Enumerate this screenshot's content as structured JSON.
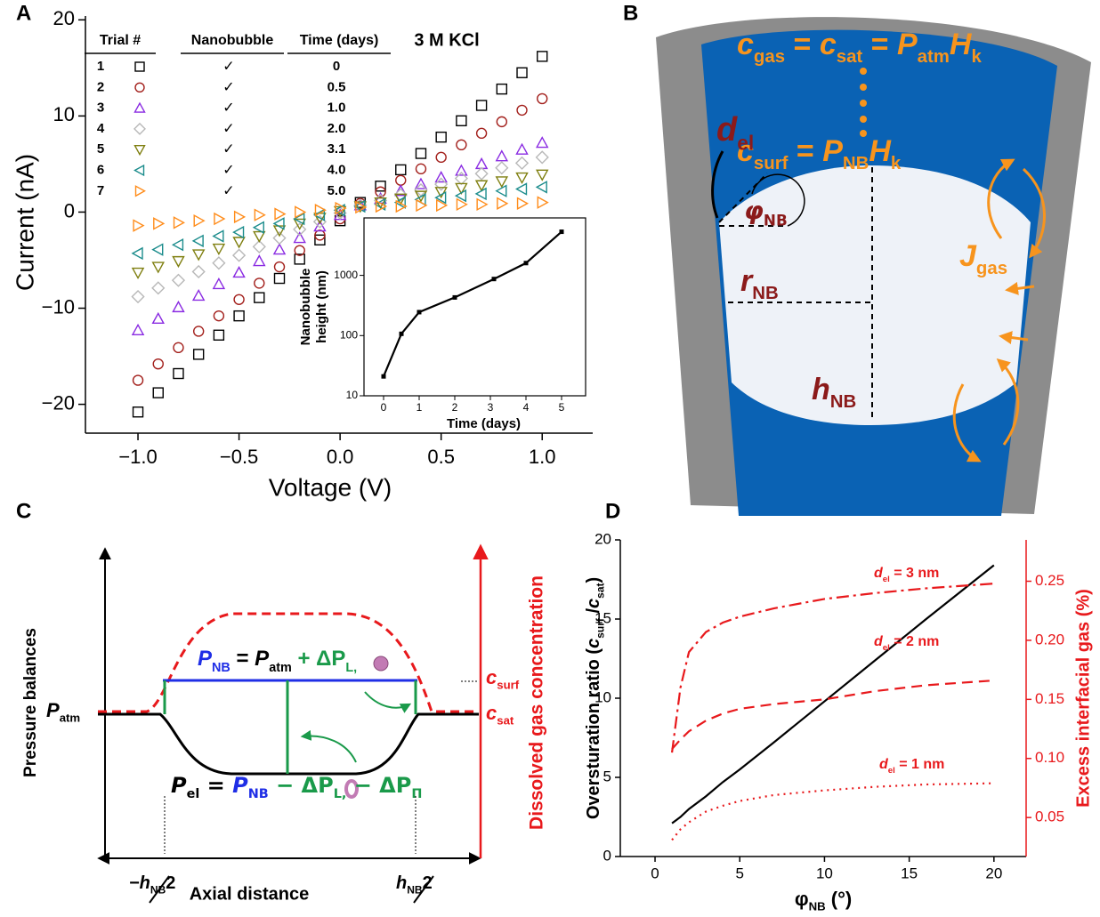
{
  "panel_labels": [
    "A",
    "B",
    "C",
    "D"
  ],
  "legend_table": {
    "headers": [
      "Trial #",
      "Nanobubble",
      "Time (days)"
    ],
    "rows": [
      [
        "✓",
        "0"
      ],
      [
        "✓",
        "0.5"
      ],
      [
        "✓",
        "1.0"
      ],
      [
        "✓",
        "2.0"
      ],
      [
        "✓",
        "3.1"
      ],
      [
        "✓",
        "4.0"
      ],
      [
        "✓",
        "5.0"
      ]
    ]
  },
  "chart_data": [
    {
      "type": "scatter",
      "xlabel": "Voltage (V)",
      "ylabel": "Current (nA)",
      "annotation": "3 M KCl",
      "xlim": [
        -1.26,
        1.25
      ],
      "ylim": [
        -23,
        20.4
      ],
      "xticks": [
        {
          "value": -1.0,
          "label": "−1.0"
        },
        {
          "value": -0.5,
          "label": "−0.5"
        },
        {
          "value": 0.0,
          "label": "0.0"
        },
        {
          "value": 0.5,
          "label": "0.5"
        },
        {
          "value": 1.0,
          "label": "1.0"
        }
      ],
      "yticks": [
        {
          "value": -20,
          "label": "−20"
        },
        {
          "value": -10,
          "label": "−10"
        },
        0,
        10,
        20
      ],
      "x": [
        -1.0,
        -0.9,
        -0.8,
        -0.7,
        -0.6,
        -0.5,
        -0.4,
        -0.3,
        -0.2,
        -0.1,
        0.0,
        0.1,
        0.2,
        0.3,
        0.4,
        0.5,
        0.6,
        0.7,
        0.8,
        0.9,
        1.0
      ],
      "series": [
        {
          "name": "1",
          "color": "#000000",
          "marker": "square",
          "values": [
            -20.8,
            -18.8,
            -16.8,
            -14.8,
            -12.8,
            -10.8,
            -8.9,
            -6.9,
            -4.9,
            -2.9,
            -0.9,
            1.0,
            2.7,
            4.4,
            6.1,
            7.8,
            9.5,
            11.1,
            12.8,
            14.5,
            16.2
          ]
        },
        {
          "name": "2",
          "color": "#a3201c",
          "marker": "circle",
          "values": [
            -17.5,
            -15.8,
            -14.1,
            -12.4,
            -10.8,
            -9.1,
            -7.4,
            -5.7,
            -4.0,
            -2.4,
            -0.7,
            0.9,
            2.1,
            3.3,
            4.5,
            5.7,
            7.0,
            8.2,
            9.4,
            10.6,
            11.8
          ]
        },
        {
          "name": "3",
          "color": "#8a2be2",
          "marker": "triangle-up",
          "values": [
            -12.3,
            -11.1,
            -9.9,
            -8.7,
            -7.5,
            -6.3,
            -5.1,
            -3.9,
            -2.7,
            -1.5,
            -0.3,
            0.7,
            1.4,
            2.2,
            2.9,
            3.6,
            4.3,
            5.0,
            5.8,
            6.5,
            7.2
          ]
        },
        {
          "name": "4",
          "color": "#b8b8b8",
          "marker": "diamond",
          "values": [
            -8.8,
            -7.9,
            -7.1,
            -6.2,
            -5.3,
            -4.5,
            -3.6,
            -2.7,
            -1.8,
            -1.0,
            -0.1,
            0.7,
            1.2,
            1.8,
            2.3,
            2.9,
            3.5,
            4.0,
            4.6,
            5.1,
            5.7
          ]
        },
        {
          "name": "5",
          "color": "#7f7f10",
          "marker": "triangle-down",
          "values": [
            -6.3,
            -5.7,
            -5.1,
            -4.4,
            -3.8,
            -3.1,
            -2.5,
            -1.9,
            -1.2,
            -0.6,
            0.1,
            0.6,
            1.0,
            1.4,
            1.7,
            2.1,
            2.5,
            2.8,
            3.2,
            3.6,
            3.9
          ]
        },
        {
          "name": "6",
          "color": "#1b8c8c",
          "marker": "triangle-left",
          "values": [
            -4.3,
            -3.9,
            -3.4,
            -3.0,
            -2.5,
            -2.1,
            -1.6,
            -1.2,
            -0.7,
            -0.3,
            0.2,
            0.6,
            0.8,
            1.0,
            1.3,
            1.5,
            1.7,
            1.9,
            2.2,
            2.4,
            2.6
          ]
        },
        {
          "name": "7",
          "color": "#ff8c1a",
          "marker": "triangle-right",
          "values": [
            -1.4,
            -1.2,
            -1.1,
            -0.9,
            -0.7,
            -0.5,
            -0.3,
            -0.2,
            0.0,
            0.2,
            0.4,
            0.5,
            0.6,
            0.6,
            0.7,
            0.7,
            0.8,
            0.8,
            0.9,
            0.9,
            1.0
          ]
        }
      ]
    },
    {
      "type": "line",
      "log_y": true,
      "markers": true,
      "color": "#000000",
      "xlabel": "Time (days)",
      "ylabel": [
        "Nanobubble",
        "height (nm)"
      ],
      "xlim": [
        -0.55,
        5.675
      ],
      "ylim": [
        10,
        9000
      ],
      "xticks": [
        0,
        1,
        2,
        3,
        4,
        5
      ],
      "yticks": [
        10,
        100,
        1000
      ],
      "x": [
        0,
        0.5,
        1.0,
        2.0,
        3.1,
        4.0,
        5.0
      ],
      "values": [
        21,
        107,
        245,
        430,
        870,
        1600,
        5300
      ]
    },
    {
      "type": "line",
      "xlabel": [
        "φ",
        "NB",
        " (°)"
      ],
      "ylabel": [
        "Oversturation ratio (",
        "c",
        "surf",
        " /",
        "c",
        "sat",
        ")"
      ],
      "y2label": "Excess interfacial gas (%)",
      "xlim": [
        -2.05,
        21.9
      ],
      "ylim": [
        0,
        20
      ],
      "y2lim": [
        0.017,
        0.285
      ],
      "xticks": [
        0,
        5,
        10,
        15,
        20
      ],
      "yticks": [
        0,
        5,
        10,
        15,
        20
      ],
      "y2ticks": [
        0.05,
        {
          "value": 0.1,
          "label": "0.10"
        },
        0.15,
        {
          "value": 0.2,
          "label": "0.20"
        },
        0.25
      ],
      "y2color": "#e8191c",
      "x": [
        1,
        1.5,
        2,
        3,
        4,
        5,
        7,
        10,
        13,
        16,
        20
      ],
      "series": [
        {
          "color": "#000000",
          "dash": "solid",
          "values": [
            2.1,
            2.5,
            3.0,
            3.8,
            4.7,
            5.5,
            7.2,
            9.8,
            12.4,
            15.0,
            18.4
          ]
        },
        {
          "name": [
            "d",
            "el",
            " = 3 nm"
          ],
          "color": "#e8191c",
          "dash": "dashdot",
          "axis": "y2",
          "values": [
            0.105,
            0.16,
            0.19,
            0.207,
            0.215,
            0.22,
            0.227,
            0.235,
            0.24,
            0.244,
            0.248
          ]
        },
        {
          "name": [
            "d",
            "el",
            " = 2 nm"
          ],
          "color": "#e8191c",
          "dash": "dashed",
          "axis": "y2",
          "values": [
            0.108,
            0.116,
            0.123,
            0.132,
            0.138,
            0.142,
            0.146,
            0.15,
            0.157,
            0.162,
            0.166
          ]
        },
        {
          "name": [
            "d",
            "el",
            " = 1 nm"
          ],
          "color": "#e8191c",
          "dash": "dotted",
          "axis": "y2",
          "values": [
            0.031,
            0.04,
            0.046,
            0.055,
            0.06,
            0.064,
            0.069,
            0.073,
            0.076,
            0.078,
            0.079
          ]
        }
      ]
    }
  ],
  "panel_b": {
    "c_gas_eq": [
      "c",
      "gas",
      " = ",
      "c",
      "sat",
      " = ",
      "P",
      "atm",
      "H",
      "k"
    ],
    "c_surf_eq": [
      "c",
      "surf",
      " = ",
      "P",
      "NB",
      "H",
      "k"
    ],
    "d_el": [
      "d",
      "el"
    ],
    "phi": [
      "φ",
      "NB"
    ],
    "r": [
      "r",
      "NB"
    ],
    "h": [
      "h",
      "NB"
    ],
    "j": [
      "J",
      "gas"
    ]
  },
  "panel_c": {
    "y_label": "Pressure balances",
    "y2_label": "Dissolved gas concentration",
    "p_atm": [
      "P",
      "atm"
    ],
    "c_surf": [
      "c",
      "surf"
    ],
    "c_sat": [
      "c",
      "sat"
    ],
    "eq_nb": [
      "P",
      "NB",
      " = ",
      "P",
      "atm",
      " + ΔP",
      "L,"
    ],
    "eq_el": [
      "P",
      "el",
      " = ",
      "P",
      "NB",
      " − ΔP",
      "L,",
      " − ΔP",
      "Π"
    ],
    "neg_h": [
      "−h",
      "NB",
      "2"
    ],
    "pos_h": [
      "h",
      "NB",
      "2"
    ],
    "x_label": "Axial distance"
  }
}
